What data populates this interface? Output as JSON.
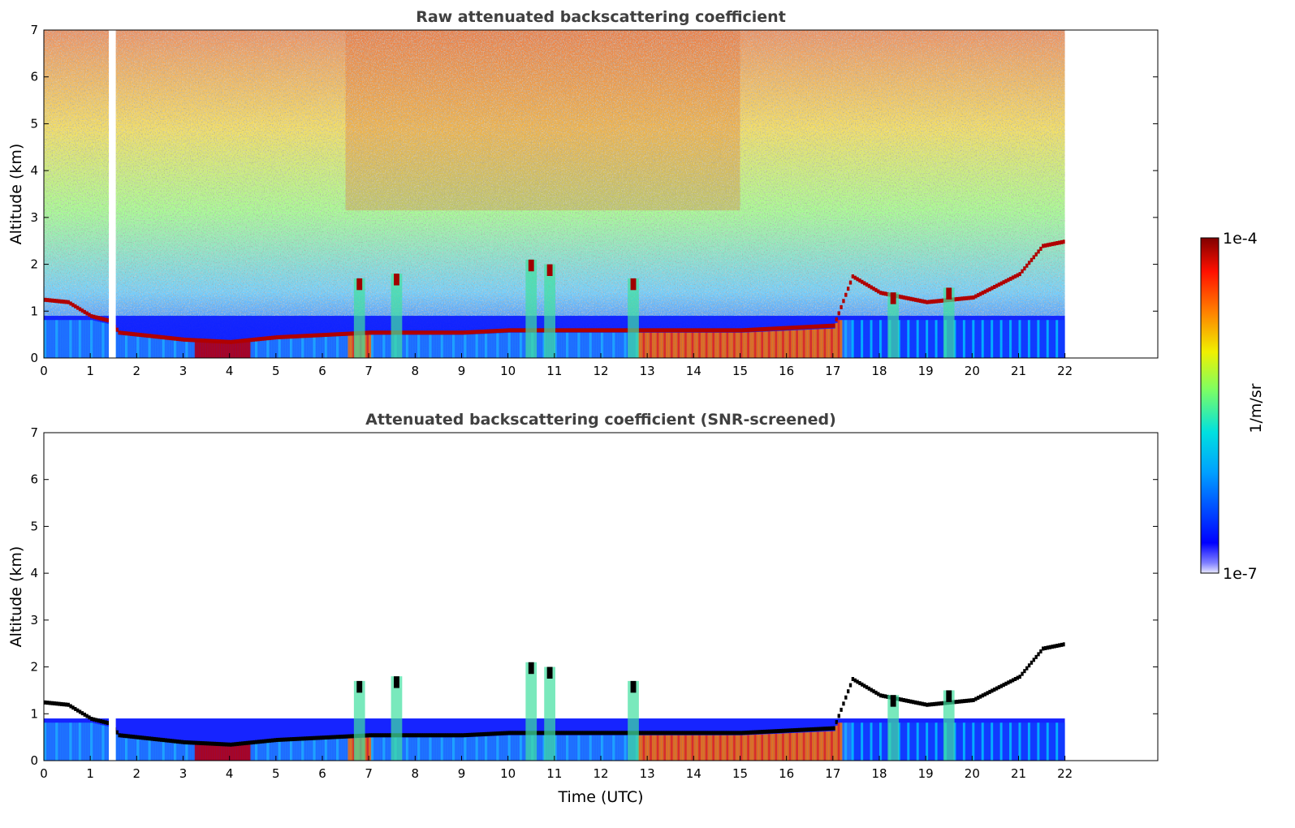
{
  "chart_data": [
    {
      "type": "heatmap",
      "title": "Raw attenuated backscattering coefficient",
      "xlabel": "",
      "ylabel": "Altitude (km)",
      "xlim": [
        0,
        24
      ],
      "ylim": [
        0,
        7
      ],
      "xticks": [
        "0",
        "1",
        "2",
        "3",
        "4",
        "5",
        "6",
        "7",
        "8",
        "9",
        "10",
        "11",
        "12",
        "13",
        "14",
        "15",
        "16",
        "17",
        "18",
        "19",
        "20",
        "21",
        "22"
      ],
      "yticks": [
        "0",
        "1",
        "2",
        "3",
        "4",
        "5",
        "6",
        "7"
      ],
      "data_extent_hours": [
        0,
        22
      ],
      "gap_hours": [
        1.4,
        1.55
      ],
      "layer_top_km": [
        [
          0,
          1.25
        ],
        [
          0.5,
          1.2
        ],
        [
          1,
          0.9
        ],
        [
          1.4,
          0.8
        ],
        [
          1.6,
          0.55
        ],
        [
          3,
          0.4
        ],
        [
          4,
          0.35
        ],
        [
          5,
          0.45
        ],
        [
          6,
          0.5
        ],
        [
          7,
          0.55
        ],
        [
          8,
          0.55
        ],
        [
          9,
          0.55
        ],
        [
          10,
          0.6
        ],
        [
          11,
          0.6
        ],
        [
          12,
          0.6
        ],
        [
          13,
          0.6
        ],
        [
          14,
          0.6
        ],
        [
          15,
          0.6
        ],
        [
          16,
          0.65
        ],
        [
          17,
          0.7
        ],
        [
          17.4,
          1.75
        ],
        [
          18,
          1.4
        ],
        [
          19,
          1.2
        ],
        [
          20,
          1.3
        ],
        [
          21,
          1.8
        ],
        [
          21.5,
          2.4
        ],
        [
          22,
          2.5
        ]
      ],
      "grid": false
    },
    {
      "type": "heatmap",
      "title": "Attenuated backscattering coefficient (SNR-screened)",
      "xlabel": "Time (UTC)",
      "ylabel": "Altitude (km)",
      "xlim": [
        0,
        24
      ],
      "ylim": [
        0,
        7
      ],
      "xticks": [
        "0",
        "1",
        "2",
        "3",
        "4",
        "5",
        "6",
        "7",
        "8",
        "9",
        "10",
        "11",
        "12",
        "13",
        "14",
        "15",
        "16",
        "17",
        "18",
        "19",
        "20",
        "21",
        "22"
      ],
      "yticks": [
        "0",
        "1",
        "2",
        "3",
        "4",
        "5",
        "6",
        "7"
      ],
      "data_extent_hours": [
        0,
        22
      ],
      "gap_hours": [
        1.4,
        1.55
      ],
      "grid": false
    }
  ],
  "colorbar": {
    "label": "1/m/sr",
    "max_label": "1e-4",
    "min_label": "1e-7",
    "scale": "log",
    "colormap": "jet"
  },
  "colors": {
    "low": "#0000ff",
    "mid_low": "#00c8ff",
    "mid": "#f0f000",
    "high": "#ff4000",
    "max": "#800000"
  }
}
